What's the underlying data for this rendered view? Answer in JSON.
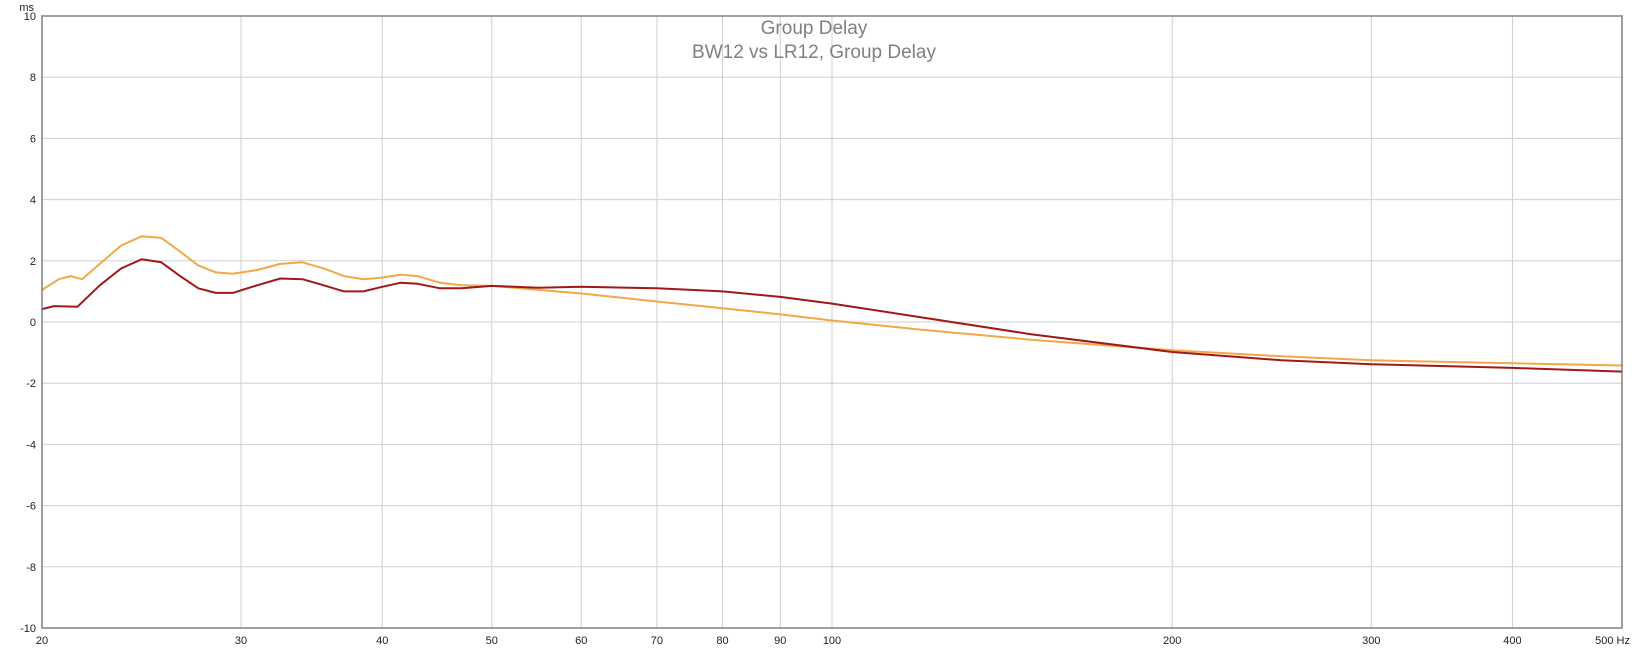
{
  "chart_data": {
    "type": "line",
    "title": "Group Delay",
    "subtitle": "BW12 vs LR12, Group Delay",
    "ylabel": "ms",
    "xlabel": "Hz",
    "x_scale": "log",
    "xlim": [
      20,
      500
    ],
    "ylim": [
      -10,
      10
    ],
    "grid": true,
    "x_ticks": [
      20,
      30,
      40,
      50,
      60,
      70,
      80,
      90,
      100,
      200,
      300,
      400,
      500
    ],
    "x_tick_labels": [
      "20",
      "30",
      "40",
      "50",
      "60",
      "70",
      "80",
      "90",
      "100",
      "200",
      "300",
      "400",
      "500 Hz"
    ],
    "y_ticks": [
      -10,
      -8,
      -6,
      -4,
      -2,
      0,
      2,
      4,
      6,
      8,
      10
    ],
    "y_tick_labels": [
      "-10",
      "-8",
      "-6",
      "-4",
      "-2",
      "0",
      "2",
      "4",
      "6",
      "8",
      "10"
    ],
    "series": [
      {
        "color": "#f0a848",
        "x": [
          20,
          20.7,
          21.2,
          21.7,
          22.5,
          23.5,
          24.5,
          25.5,
          26.5,
          27.5,
          28.5,
          29.5,
          31,
          32.5,
          34,
          35.5,
          37,
          38.5,
          40,
          41.5,
          43,
          45,
          47,
          50,
          55,
          60,
          70,
          80,
          90,
          100,
          120,
          150,
          200,
          250,
          300,
          400,
          500
        ],
        "y": [
          1.05,
          1.4,
          1.5,
          1.4,
          1.9,
          2.5,
          2.8,
          2.75,
          2.3,
          1.85,
          1.62,
          1.58,
          1.7,
          1.9,
          1.95,
          1.75,
          1.5,
          1.4,
          1.45,
          1.55,
          1.5,
          1.28,
          1.2,
          1.18,
          1.05,
          0.93,
          0.67,
          0.45,
          0.25,
          0.05,
          -0.25,
          -0.58,
          -0.92,
          -1.12,
          -1.25,
          -1.35,
          -1.42
        ]
      },
      {
        "color": "#a01818",
        "x": [
          20,
          20.5,
          21.5,
          22.5,
          23.5,
          24.5,
          25.5,
          26.5,
          27.5,
          28.5,
          29.5,
          31,
          32.5,
          34,
          35.5,
          37,
          38.5,
          40,
          41.5,
          43,
          45,
          47,
          50,
          55,
          60,
          70,
          80,
          90,
          100,
          120,
          150,
          200,
          250,
          300,
          400,
          500
        ],
        "y": [
          0.42,
          0.52,
          0.5,
          1.2,
          1.75,
          2.05,
          1.95,
          1.5,
          1.1,
          0.95,
          0.95,
          1.2,
          1.42,
          1.4,
          1.2,
          1.0,
          1.0,
          1.15,
          1.28,
          1.25,
          1.1,
          1.1,
          1.18,
          1.12,
          1.15,
          1.1,
          1.0,
          0.82,
          0.6,
          0.15,
          -0.4,
          -0.98,
          -1.25,
          -1.38,
          -1.5,
          -1.62
        ]
      }
    ]
  }
}
